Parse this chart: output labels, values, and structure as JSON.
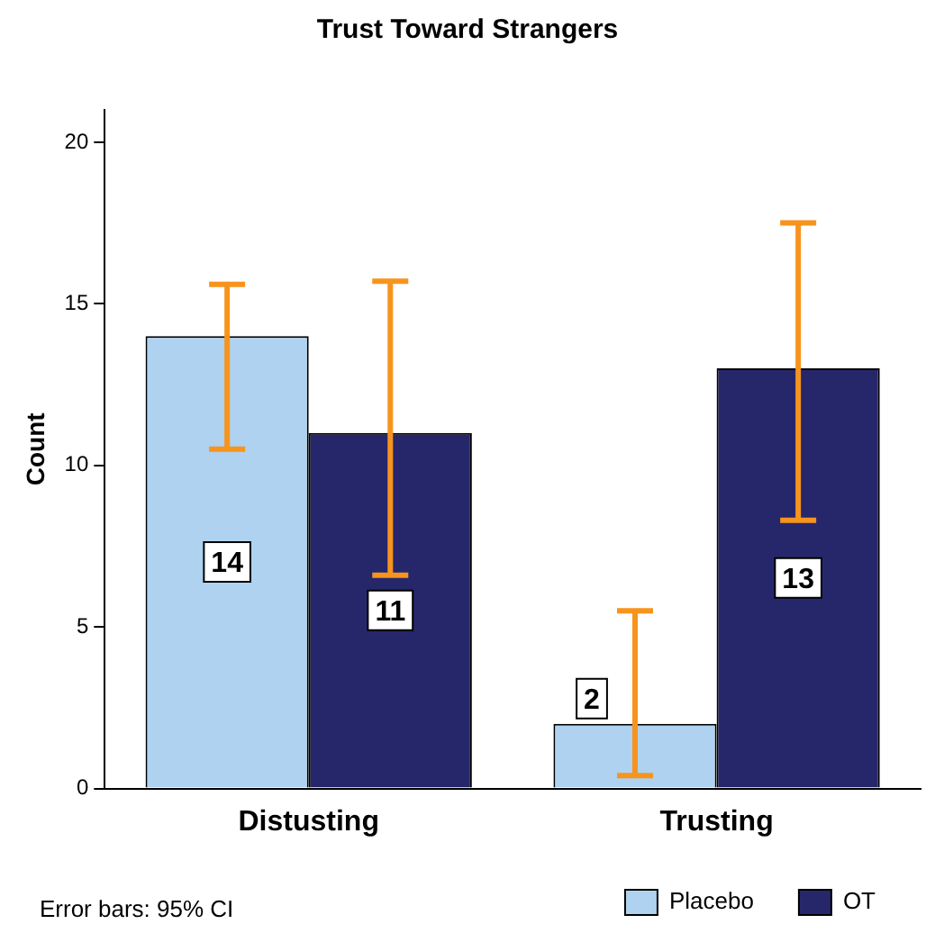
{
  "chart_data": {
    "type": "bar",
    "title": "Trust Toward Strangers",
    "ylabel": "Count",
    "categories": [
      "Distusting",
      "Trusting"
    ],
    "series": [
      {
        "name": "Placebo",
        "color": "#aed2f0",
        "values": [
          14,
          2
        ],
        "errors": [
          [
            10.5,
            15.6
          ],
          [
            0.4,
            5.5
          ]
        ]
      },
      {
        "name": "OT",
        "color": "#26276b",
        "values": [
          11,
          13
        ],
        "errors": [
          [
            6.6,
            15.7
          ],
          [
            8.3,
            17.5
          ]
        ]
      }
    ],
    "ylim": [
      0,
      21
    ],
    "yticks": [
      0,
      5,
      10,
      15,
      20
    ],
    "grid": false,
    "legend": "bottom right",
    "data_labels": true,
    "annotations": [
      "Error bars: 95% CI"
    ]
  }
}
